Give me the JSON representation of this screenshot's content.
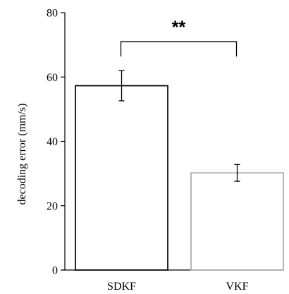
{
  "chart_data": {
    "type": "bar",
    "categories": [
      "SDKF",
      "VKF"
    ],
    "values": [
      57.3,
      30.2
    ],
    "errors": [
      4.7,
      2.6
    ],
    "bar_colors": [
      "#000000",
      "#aaaaaa"
    ],
    "ylabel": "decoding error (mm/s)",
    "ylim": [
      0,
      80
    ],
    "yticks": [
      0,
      20,
      40,
      60,
      80
    ],
    "grid": false,
    "significance": {
      "between": [
        0,
        1
      ],
      "label": "**",
      "level": 71
    }
  }
}
